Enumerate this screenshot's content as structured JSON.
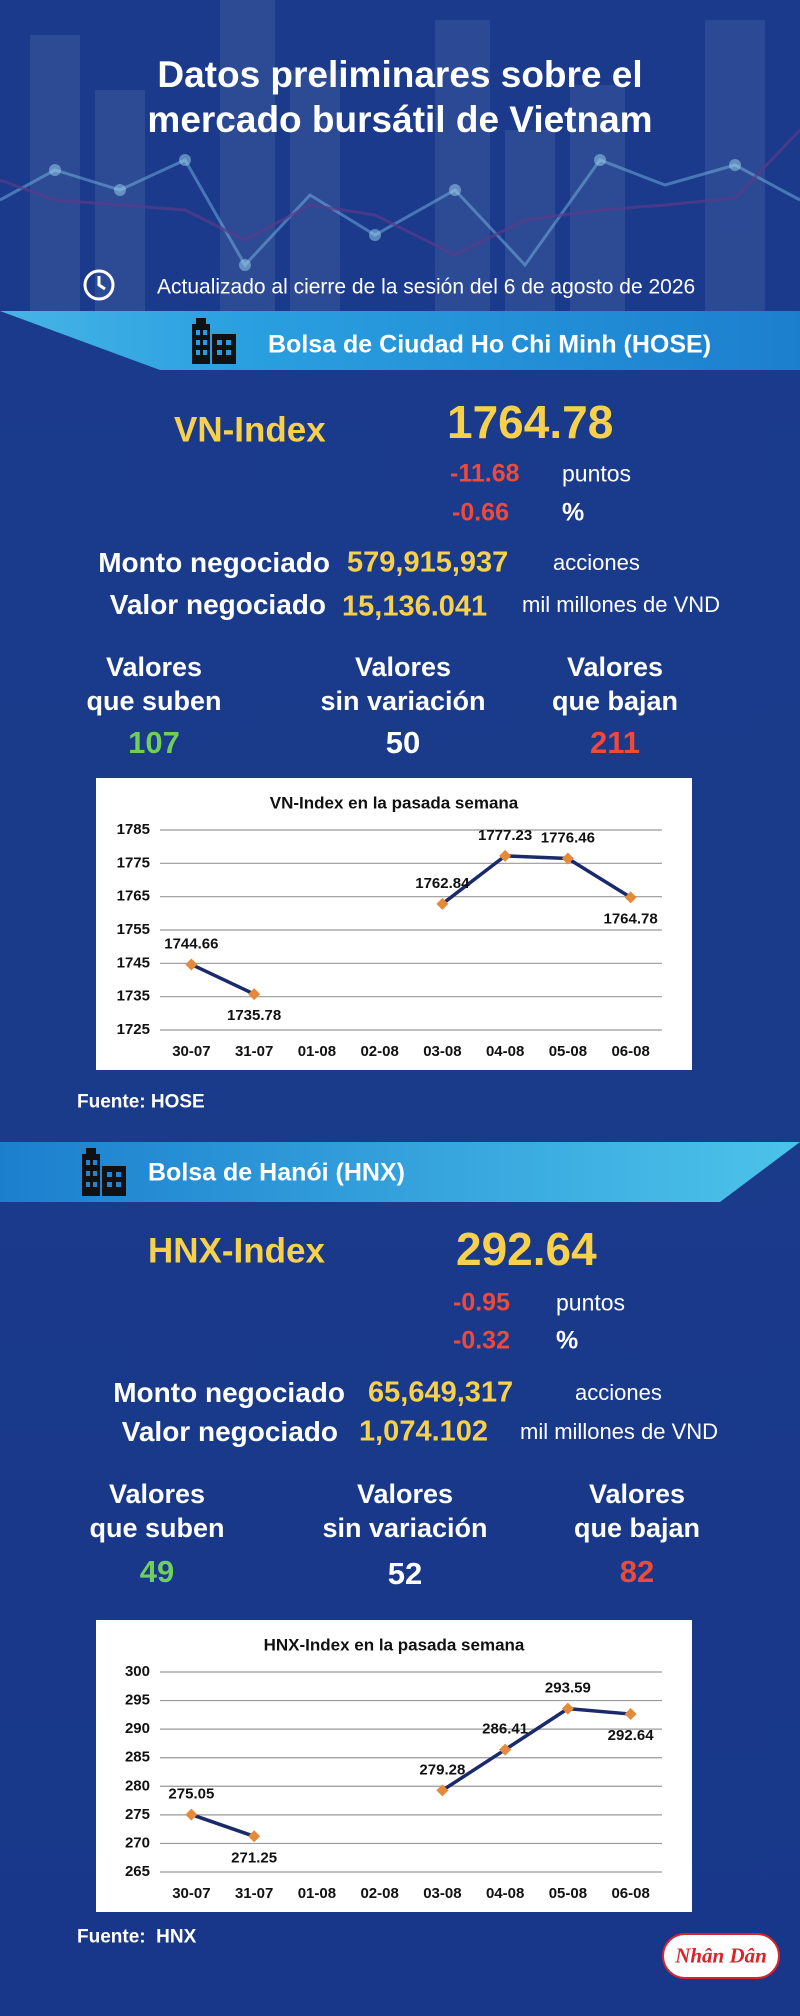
{
  "header": {
    "title": "Datos preliminares sobre el mercado bursátil de Vietnam",
    "updated": "Actualizado al cierre de la sesión del 6 de agosto de 2026"
  },
  "hose": {
    "heading": "Bolsa de Ciudad Ho Chi Minh (HOSE)",
    "index_name": "VN-Index",
    "index_value": 1764.78,
    "change_points": -11.68,
    "points_unit": "puntos",
    "change_percent": -0.66,
    "percent_unit": "%",
    "volume_label": "Monto negociado",
    "volume": "579,915,937",
    "volume_unit": "acciones",
    "value_label": "Valor negociado",
    "value": "15,136.041",
    "value_unit": "mil millones de VND",
    "advancers_label": [
      "Valores",
      "que suben"
    ],
    "advancers": 107,
    "unchanged_label": [
      "Valores",
      "sin variación"
    ],
    "unchanged": 50,
    "decliners_label": [
      "Valores",
      "que bajan"
    ],
    "decliners": 211,
    "source": "Fuente: HOSE"
  },
  "hnx": {
    "heading": "Bolsa de Hanói (HNX)",
    "index_name": "HNX-Index",
    "index_value": 292.64,
    "change_points": -0.95,
    "points_unit": "puntos",
    "change_percent": -0.32,
    "percent_unit": "%",
    "volume_label": "Monto negociado",
    "volume": "65,649,317",
    "volume_unit": "acciones",
    "value_label": "Valor negociado",
    "value": "1,074.102",
    "value_unit": "mil millones de VND",
    "advancers_label": [
      "Valores",
      "que suben"
    ],
    "advancers": 49,
    "unchanged_label": [
      "Valores",
      "sin variación"
    ],
    "unchanged": 52,
    "decliners_label": [
      "Valores",
      "que bajan"
    ],
    "decliners": 82,
    "source": "Fuente:  HNX"
  },
  "chart_data": [
    {
      "type": "line",
      "title": "VN-Index en la pasada semana",
      "categories": [
        "30-07",
        "31-07",
        "01-08",
        "02-08",
        "03-08",
        "04-08",
        "05-08",
        "06-08"
      ],
      "values": [
        1744.66,
        1735.78,
        null,
        null,
        1762.84,
        1777.23,
        1776.46,
        1764.78
      ],
      "color": "#1b2a6b",
      "marker_color": "#e58a3a",
      "ylim": [
        1725,
        1785
      ],
      "yticks": [
        1725,
        1735,
        1745,
        1755,
        1765,
        1775,
        1785
      ],
      "grid": true
    },
    {
      "type": "line",
      "title": "HNX-Index en la pasada semana",
      "categories": [
        "30-07",
        "31-07",
        "01-08",
        "02-08",
        "03-08",
        "04-08",
        "05-08",
        "06-08"
      ],
      "values": [
        275.05,
        271.25,
        null,
        null,
        279.28,
        286.41,
        293.59,
        292.64
      ],
      "color": "#1b2a6b",
      "marker_color": "#e58a3a",
      "ylim": [
        265,
        300
      ],
      "yticks": [
        265,
        270,
        275,
        280,
        285,
        290,
        295,
        300
      ],
      "grid": true
    }
  ],
  "logo": "Nhân Dân"
}
